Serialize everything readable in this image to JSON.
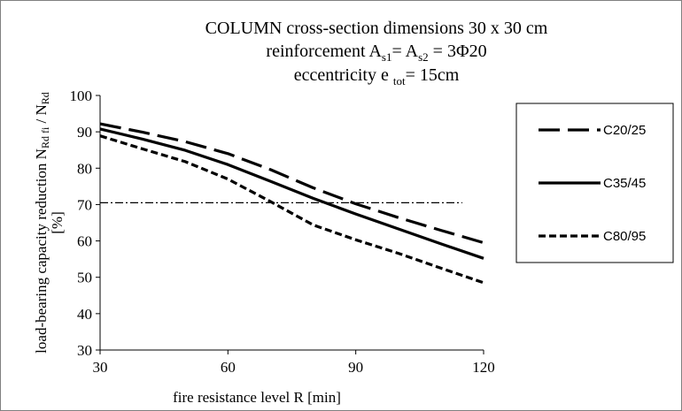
{
  "chart_data": {
    "type": "line",
    "title": {
      "line1": "COLUMN cross-section  dimensions  30 x 30 cm",
      "line2": {
        "a": "reinforcement  A",
        "s1": "s1",
        "b": "= A",
        "s2": "s2",
        "c": " = 3Φ20"
      },
      "line3": {
        "a": "eccentricity  e ",
        "sub": "tot",
        "b": "= 15cm"
      }
    },
    "xlabel": "fire resistance level R [min]",
    "ylabel": {
      "text": "load-bearing capacity reduction   N",
      "sub1": "Rd fi",
      "mid": " / N",
      "sub2": "Rd",
      "unit": "[%]"
    },
    "xlim": [
      30,
      120
    ],
    "ylim": [
      30,
      100
    ],
    "x_ticks": [
      30,
      60,
      90,
      120
    ],
    "y_ticks": [
      30,
      40,
      50,
      60,
      70,
      80,
      90,
      100
    ],
    "grid": false,
    "legend_position": "right",
    "x": [
      30,
      40,
      50,
      60,
      70,
      80,
      90,
      100,
      110,
      120
    ],
    "series": [
      {
        "name": "C20/25",
        "style": "long-dash",
        "values": [
          92.2,
          89.9,
          87.3,
          84.0,
          79.6,
          74.6,
          70.2,
          66.4,
          62.9,
          59.5
        ]
      },
      {
        "name": "C35/45",
        "style": "solid",
        "values": [
          90.8,
          88.0,
          84.9,
          81.0,
          76.4,
          71.7,
          67.4,
          63.3,
          59.2,
          55.2
        ]
      },
      {
        "name": "C80/95",
        "style": "short-dash",
        "values": [
          88.9,
          85.3,
          81.8,
          77.0,
          70.8,
          64.4,
          60.3,
          56.6,
          52.5,
          48.5
        ]
      }
    ],
    "reference_line": {
      "style": "dash-dot",
      "y": 70.5,
      "x_range": [
        30,
        115
      ]
    }
  }
}
